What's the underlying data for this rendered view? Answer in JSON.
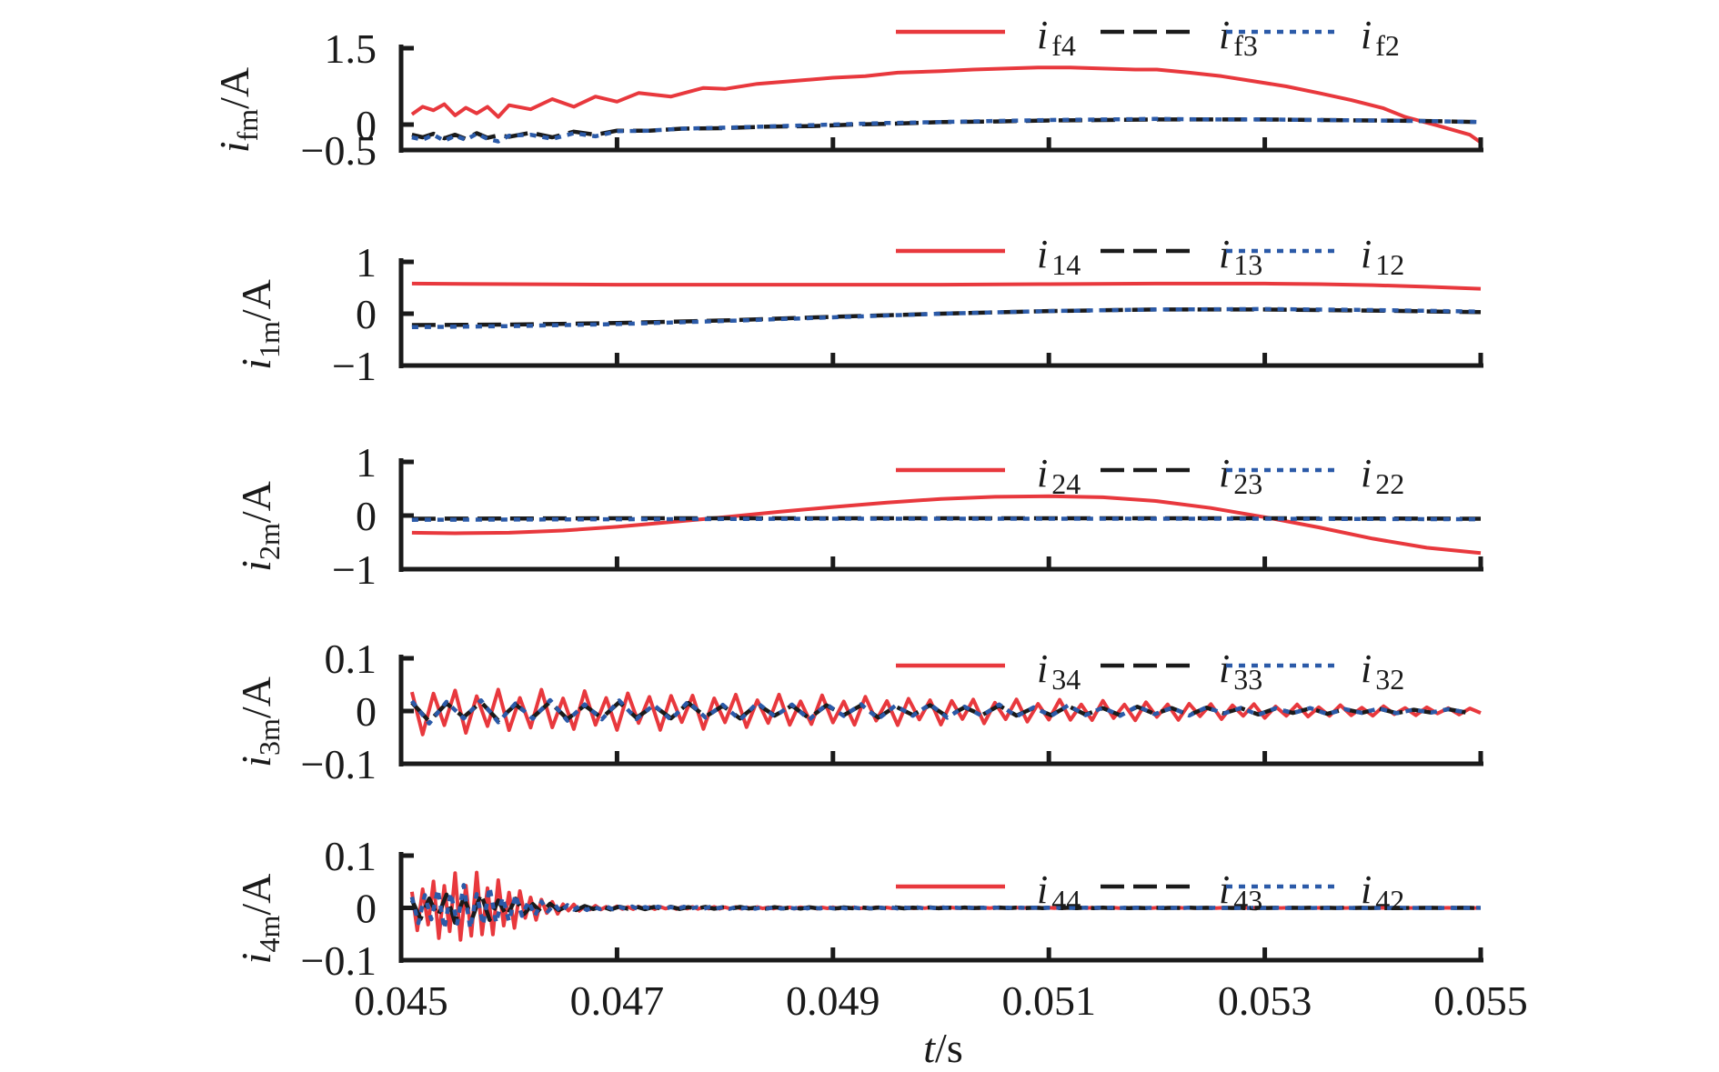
{
  "figure": {
    "xlabel_var": "t",
    "xlabel_unit": "/s"
  },
  "colors": {
    "mode4": "#e8383d",
    "mode3": "#1a1a1a",
    "mode2": "#2b5aa8",
    "axis": "#1a1a1a"
  },
  "chart_data": [
    {
      "type": "line",
      "ylabel_main": "i",
      "ylabel_sub": "fm",
      "ylabel_unit": "/A",
      "xlim": [
        0.045,
        0.055
      ],
      "ylim": [
        -0.5,
        1.5
      ],
      "yticks": [
        -0.5,
        0,
        1.5
      ],
      "ytick_labels": [
        "−0.5",
        "0",
        "1.5"
      ],
      "xticks": [
        0.045,
        0.047,
        0.049,
        0.051,
        0.053,
        0.055
      ],
      "xtick_labels": [
        "0.045",
        "0.047",
        "0.049",
        "0.051",
        "0.053",
        "0.055"
      ],
      "legend_position": "top-right",
      "series": [
        {
          "name": "i",
          "sub": "f4",
          "style": "solid",
          "color_key": "mode4",
          "x": [
            0.0451,
            0.0452,
            0.0453,
            0.0454,
            0.0455,
            0.0456,
            0.0457,
            0.0458,
            0.0459,
            0.046,
            0.0462,
            0.0464,
            0.0466,
            0.0468,
            0.047,
            0.0472,
            0.0475,
            0.0478,
            0.048,
            0.0483,
            0.0486,
            0.049,
            0.0493,
            0.0496,
            0.05,
            0.0503,
            0.0506,
            0.0509,
            0.0512,
            0.0515,
            0.0518,
            0.052,
            0.0523,
            0.0526,
            0.0529,
            0.0532,
            0.0535,
            0.0538,
            0.0541,
            0.0543,
            0.0546,
            0.0549,
            0.055
          ],
          "y": [
            0.2,
            0.35,
            0.28,
            0.4,
            0.18,
            0.33,
            0.22,
            0.35,
            0.15,
            0.38,
            0.3,
            0.5,
            0.35,
            0.55,
            0.45,
            0.62,
            0.55,
            0.72,
            0.7,
            0.8,
            0.85,
            0.92,
            0.95,
            1.02,
            1.05,
            1.08,
            1.1,
            1.12,
            1.12,
            1.1,
            1.08,
            1.08,
            1.02,
            0.95,
            0.85,
            0.75,
            0.62,
            0.48,
            0.32,
            0.15,
            -0.02,
            -0.2,
            -0.35
          ]
        },
        {
          "name": "i",
          "sub": "f3",
          "style": "dash",
          "color_key": "mode3",
          "x": [
            0.0451,
            0.0452,
            0.0453,
            0.0454,
            0.0455,
            0.0456,
            0.0457,
            0.0458,
            0.0459,
            0.046,
            0.0462,
            0.0464,
            0.0466,
            0.0468,
            0.047,
            0.0473,
            0.0476,
            0.048,
            0.0484,
            0.0488,
            0.0492,
            0.0496,
            0.05,
            0.0505,
            0.051,
            0.0515,
            0.052,
            0.0525,
            0.053,
            0.0535,
            0.054,
            0.0545,
            0.055
          ],
          "y": [
            -0.2,
            -0.25,
            -0.18,
            -0.27,
            -0.2,
            -0.28,
            -0.17,
            -0.26,
            -0.21,
            -0.24,
            -0.16,
            -0.25,
            -0.14,
            -0.2,
            -0.12,
            -0.12,
            -0.08,
            -0.07,
            -0.04,
            -0.03,
            0.0,
            0.02,
            0.05,
            0.06,
            0.08,
            0.09,
            0.1,
            0.1,
            0.1,
            0.09,
            0.08,
            0.07,
            0.05
          ]
        },
        {
          "name": "i",
          "sub": "f2",
          "style": "dot",
          "color_key": "mode2",
          "x": [
            0.0451,
            0.0452,
            0.0453,
            0.0454,
            0.0455,
            0.0456,
            0.0457,
            0.0458,
            0.0459,
            0.046,
            0.0462,
            0.0464,
            0.0466,
            0.0468,
            0.047,
            0.0473,
            0.0476,
            0.048,
            0.0485,
            0.049,
            0.0495,
            0.05,
            0.0505,
            0.051,
            0.0515,
            0.052,
            0.0525,
            0.053,
            0.0535,
            0.054,
            0.0545,
            0.055
          ],
          "y": [
            -0.25,
            -0.3,
            -0.2,
            -0.32,
            -0.22,
            -0.3,
            -0.18,
            -0.28,
            -0.33,
            -0.22,
            -0.2,
            -0.28,
            -0.17,
            -0.23,
            -0.13,
            -0.12,
            -0.08,
            -0.06,
            -0.03,
            0.0,
            0.03,
            0.05,
            0.07,
            0.09,
            0.1,
            0.11,
            0.1,
            0.1,
            0.09,
            0.08,
            0.07,
            0.05
          ]
        }
      ]
    },
    {
      "type": "line",
      "ylabel_main": "i",
      "ylabel_sub": "1m",
      "ylabel_unit": "/A",
      "xlim": [
        0.045,
        0.055
      ],
      "ylim": [
        -1,
        1
      ],
      "yticks": [
        -1,
        0,
        1
      ],
      "ytick_labels": [
        "−1",
        "0",
        "1"
      ],
      "xticks": [
        0.045,
        0.047,
        0.049,
        0.051,
        0.053,
        0.055
      ],
      "xtick_labels": [
        "0.045",
        "0.047",
        "0.049",
        "0.051",
        "0.053",
        "0.055"
      ],
      "legend_position": "top-right",
      "series": [
        {
          "name": "i",
          "sub": "14",
          "style": "solid",
          "color_key": "mode4",
          "x": [
            0.0451,
            0.046,
            0.047,
            0.048,
            0.049,
            0.05,
            0.051,
            0.052,
            0.053,
            0.0535,
            0.054,
            0.0545,
            0.055
          ],
          "y": [
            0.58,
            0.57,
            0.56,
            0.56,
            0.56,
            0.56,
            0.57,
            0.58,
            0.58,
            0.57,
            0.55,
            0.52,
            0.48
          ]
        },
        {
          "name": "i",
          "sub": "13",
          "style": "dash",
          "color_key": "mode3",
          "x": [
            0.0451,
            0.046,
            0.047,
            0.048,
            0.049,
            0.05,
            0.051,
            0.052,
            0.053,
            0.054,
            0.055
          ],
          "y": [
            -0.22,
            -0.21,
            -0.18,
            -0.13,
            -0.06,
            0.0,
            0.05,
            0.08,
            0.08,
            0.06,
            0.03
          ]
        },
        {
          "name": "i",
          "sub": "12",
          "style": "dot",
          "color_key": "mode2",
          "x": [
            0.0451,
            0.046,
            0.047,
            0.048,
            0.049,
            0.05,
            0.051,
            0.052,
            0.053,
            0.054,
            0.055
          ],
          "y": [
            -0.26,
            -0.24,
            -0.2,
            -0.14,
            -0.07,
            0.0,
            0.05,
            0.08,
            0.09,
            0.07,
            0.04
          ]
        }
      ]
    },
    {
      "type": "line",
      "ylabel_main": "i",
      "ylabel_sub": "2m",
      "ylabel_unit": "/A",
      "xlim": [
        0.045,
        0.055
      ],
      "ylim": [
        -1,
        1
      ],
      "yticks": [
        -1,
        0,
        1
      ],
      "ytick_labels": [
        "−1",
        "0",
        "1"
      ],
      "xticks": [
        0.045,
        0.047,
        0.049,
        0.051,
        0.053,
        0.055
      ],
      "xtick_labels": [
        "0.045",
        "0.047",
        "0.049",
        "0.051",
        "0.053",
        "0.055"
      ],
      "legend_position": "top-right",
      "series": [
        {
          "name": "i",
          "sub": "24",
          "style": "solid",
          "color_key": "mode4",
          "x": [
            0.0451,
            0.0455,
            0.046,
            0.0465,
            0.047,
            0.0475,
            0.048,
            0.0485,
            0.049,
            0.0495,
            0.05,
            0.0505,
            0.051,
            0.0515,
            0.052,
            0.0525,
            0.053,
            0.0535,
            0.054,
            0.0545,
            0.055
          ],
          "y": [
            -0.32,
            -0.33,
            -0.32,
            -0.28,
            -0.21,
            -0.12,
            -0.03,
            0.07,
            0.16,
            0.24,
            0.31,
            0.35,
            0.36,
            0.34,
            0.27,
            0.14,
            -0.03,
            -0.22,
            -0.43,
            -0.6,
            -0.7
          ]
        },
        {
          "name": "i",
          "sub": "23",
          "style": "dash",
          "color_key": "mode3",
          "x": [
            0.0451,
            0.047,
            0.049,
            0.051,
            0.053,
            0.055
          ],
          "y": [
            -0.06,
            -0.05,
            -0.05,
            -0.05,
            -0.05,
            -0.06
          ]
        },
        {
          "name": "i",
          "sub": "22",
          "style": "dot",
          "color_key": "mode2",
          "x": [
            0.0451,
            0.047,
            0.049,
            0.051,
            0.053,
            0.055
          ],
          "y": [
            -0.08,
            -0.07,
            -0.06,
            -0.06,
            -0.06,
            -0.07
          ]
        }
      ]
    },
    {
      "type": "line",
      "ylabel_main": "i",
      "ylabel_sub": "3m",
      "ylabel_unit": "/A",
      "xlim": [
        0.045,
        0.055
      ],
      "ylim": [
        -0.1,
        0.1
      ],
      "yticks": [
        -0.1,
        0,
        0.1
      ],
      "ytick_labels": [
        "−0.1",
        "0",
        "0.1"
      ],
      "xticks": [
        0.045,
        0.047,
        0.049,
        0.051,
        0.053,
        0.055
      ],
      "xtick_labels": [
        "0.045",
        "0.047",
        "0.049",
        "0.051",
        "0.053",
        "0.055"
      ],
      "legend_position": "top-right",
      "series": [
        {
          "name": "i",
          "sub": "34",
          "style": "solid",
          "color_key": "mode4",
          "osc_start": 0.0451,
          "osc_end": 0.055,
          "osc_step": 0.0001,
          "osc_amp0": 0.045,
          "osc_amp1": 0.006,
          "osc_decay": "linear"
        },
        {
          "name": "i",
          "sub": "33",
          "style": "dash",
          "color_key": "mode3",
          "osc_start": 0.0451,
          "osc_end": 0.055,
          "osc_step": 0.00016,
          "osc_amp0": 0.02,
          "osc_amp1": 0.003,
          "osc_decay": "linear"
        },
        {
          "name": "i",
          "sub": "32",
          "style": "dot",
          "color_key": "mode2",
          "osc_start": 0.0451,
          "osc_end": 0.055,
          "osc_step": 0.00016,
          "osc_amp0": 0.024,
          "osc_amp1": 0.003,
          "osc_decay": "linear"
        }
      ]
    },
    {
      "type": "line",
      "ylabel_main": "i",
      "ylabel_sub": "4m",
      "ylabel_unit": "/A",
      "xlim": [
        0.045,
        0.055
      ],
      "ylim": [
        -0.1,
        0.1
      ],
      "yticks": [
        -0.1,
        0,
        0.1
      ],
      "ytick_labels": [
        "−0.1",
        "0",
        "0.1"
      ],
      "xticks": [
        0.045,
        0.047,
        0.049,
        0.051,
        0.053,
        0.055
      ],
      "xtick_labels": [
        "0.045",
        "0.047",
        "0.049",
        "0.051",
        "0.053",
        "0.055"
      ],
      "legend_position": "top-right",
      "series": [
        {
          "name": "i",
          "sub": "44",
          "style": "solid",
          "color_key": "mode4",
          "osc_start": 0.0451,
          "osc_end": 0.055,
          "osc_step": 5e-05,
          "osc_amp0": 0.065,
          "osc_amp1": 0.0,
          "osc_decay": "burst"
        },
        {
          "name": "i",
          "sub": "43",
          "style": "dash",
          "color_key": "mode3",
          "osc_start": 0.0451,
          "osc_end": 0.055,
          "osc_step": 8e-05,
          "osc_amp0": 0.025,
          "osc_amp1": 0.0,
          "osc_decay": "burst"
        },
        {
          "name": "i",
          "sub": "42",
          "style": "dot",
          "color_key": "mode2",
          "osc_start": 0.0451,
          "osc_end": 0.055,
          "osc_step": 6e-05,
          "osc_amp0": 0.04,
          "osc_amp1": 0.0,
          "osc_decay": "burst"
        }
      ]
    }
  ]
}
